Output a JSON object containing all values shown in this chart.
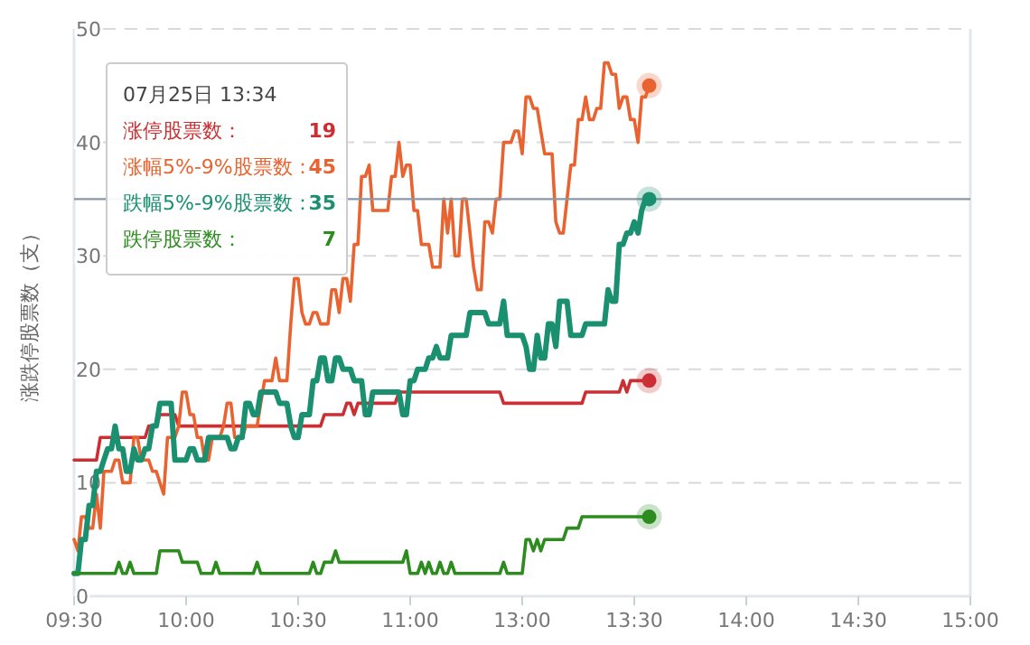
{
  "chart_data": {
    "type": "line",
    "ylabel": "涨跌停股票数（支）",
    "legend_title": "07月25日 13:34",
    "legend": "top left",
    "grid": "y",
    "marker": "none",
    "line_style": "solid",
    "categories": [
      "09:30",
      null,
      null,
      null,
      null,
      null,
      null,
      null,
      null,
      null,
      null,
      null,
      null,
      null,
      null,
      null,
      null,
      null,
      null,
      null,
      null,
      null,
      null,
      null,
      null,
      null,
      null,
      null,
      null,
      null,
      "10:00",
      null,
      null,
      null,
      null,
      null,
      null,
      null,
      null,
      null,
      null,
      null,
      null,
      null,
      null,
      null,
      null,
      null,
      null,
      null,
      null,
      null,
      null,
      null,
      null,
      null,
      null,
      null,
      null,
      null,
      "10:30",
      null,
      null,
      null,
      null,
      null,
      null,
      null,
      null,
      null,
      null,
      null,
      null,
      null,
      null,
      null,
      null,
      null,
      null,
      null,
      null,
      null,
      null,
      null,
      null,
      null,
      null,
      null,
      null,
      null,
      "11:00",
      null,
      null,
      null,
      null,
      null,
      null,
      null,
      null,
      null,
      null,
      null,
      null,
      null,
      null,
      null,
      null,
      null,
      null,
      null,
      null,
      null,
      null,
      null,
      null,
      null,
      null,
      null,
      null,
      null,
      "13:00",
      null,
      null,
      null,
      null,
      null,
      null,
      null,
      null,
      null,
      null,
      null,
      null,
      null,
      null,
      null,
      null,
      null,
      null,
      null,
      null,
      null,
      null,
      null,
      null,
      null,
      null,
      null,
      null,
      null,
      "13:30",
      null,
      null,
      null,
      null,
      null,
      null,
      null,
      null,
      null,
      null,
      null,
      null,
      null,
      null,
      null,
      null,
      null,
      null,
      null,
      null,
      null,
      null,
      null,
      null,
      null,
      null,
      null,
      null,
      null,
      "14:00",
      null,
      null,
      null,
      null,
      null,
      null,
      null,
      null,
      null,
      null,
      null,
      null,
      null,
      null,
      null,
      null,
      null,
      null,
      null,
      null,
      null,
      null,
      null,
      null,
      null,
      null,
      null,
      null,
      null,
      "14:30",
      null,
      null,
      null,
      null,
      null,
      null,
      null,
      null,
      null,
      null,
      null,
      null,
      null,
      null,
      null,
      null,
      null,
      null,
      null,
      null,
      null,
      null,
      null,
      null,
      null,
      null,
      null,
      null,
      null,
      "15:00"
    ],
    "ylim": [
      0,
      50
    ],
    "yticks": [
      0,
      10,
      20,
      30,
      40,
      50
    ],
    "ref_lines": [
      {
        "axis": "y",
        "value": 35,
        "color": "#8a97a8"
      }
    ],
    "annotations": [
      "19",
      "45",
      "35",
      "7"
    ],
    "series": [
      {
        "name": "涨停股票数：",
        "color": "#cc2f33",
        "values": [
          12,
          12,
          12,
          12,
          12,
          12,
          12,
          14,
          14,
          14,
          14,
          14,
          14,
          14,
          14,
          14,
          14,
          14,
          14,
          14,
          15,
          15,
          15,
          16,
          16,
          16,
          16,
          16,
          15,
          15,
          15,
          15,
          15,
          15,
          15,
          15,
          15,
          15,
          15,
          15,
          15,
          15,
          15,
          15,
          15,
          15,
          15,
          15,
          15,
          15,
          15,
          15,
          15,
          15,
          15,
          15,
          15,
          15,
          15,
          15,
          15,
          15,
          15,
          15,
          15,
          15,
          15,
          16,
          16,
          16,
          16,
          16,
          16,
          17,
          17,
          16,
          17,
          17,
          17,
          17,
          17,
          17,
          17,
          17,
          17,
          17,
          17,
          18,
          18,
          18,
          18,
          18,
          18,
          18,
          18,
          18,
          18,
          18,
          18,
          18,
          18,
          18,
          18,
          18,
          18,
          18,
          18,
          18,
          18,
          18,
          18,
          18,
          18,
          18,
          18,
          17,
          17,
          17,
          17,
          17,
          17,
          17,
          17,
          17,
          17,
          17,
          17,
          17,
          17,
          17,
          17,
          17,
          17,
          17,
          17,
          17,
          17,
          18,
          18,
          18,
          18,
          18,
          18,
          18,
          18,
          18,
          18,
          19,
          18,
          19,
          19,
          19,
          19,
          19,
          19,
          null,
          null,
          null,
          null,
          null,
          null,
          null,
          null,
          null,
          null,
          null,
          null,
          null,
          null,
          null,
          null,
          null,
          null,
          null,
          null,
          null,
          null,
          null,
          null,
          null,
          null,
          null,
          null,
          null,
          null,
          null,
          null,
          null,
          null,
          null,
          null,
          null,
          null,
          null,
          null,
          null,
          null,
          null,
          null,
          null,
          null,
          null,
          null,
          null,
          null,
          null,
          null,
          null,
          null,
          null,
          null,
          null,
          null,
          null,
          null,
          null,
          null,
          null,
          null,
          null,
          null,
          null,
          null,
          null,
          null,
          null,
          null,
          null,
          null,
          null,
          null,
          null,
          null,
          null,
          null,
          null,
          null,
          null,
          null,
          null,
          null
        ]
      },
      {
        "name": "涨幅5%-9%股票数：",
        "color": "#e8632f",
        "values": [
          5,
          4,
          7,
          7,
          6,
          6,
          9,
          6,
          11,
          11,
          11,
          12,
          12,
          10,
          10,
          10,
          14,
          14,
          12,
          12,
          12,
          11,
          11,
          10,
          9,
          14,
          14,
          14,
          15,
          18,
          18,
          16,
          16,
          14,
          14,
          12,
          12,
          14,
          14,
          14,
          15,
          17,
          17,
          14,
          14,
          14,
          15,
          15,
          15,
          15,
          17,
          19,
          19,
          19,
          21,
          19,
          19,
          19,
          24,
          28,
          28,
          25,
          24,
          24,
          25,
          25,
          24,
          24,
          24,
          27,
          27,
          25,
          28,
          28,
          26,
          31,
          31,
          37,
          37,
          38,
          34,
          34,
          34,
          34,
          34,
          37,
          37,
          40,
          37,
          38,
          38,
          34,
          34,
          31,
          31,
          31,
          29,
          29,
          29,
          35,
          32,
          35,
          30,
          30,
          35,
          35,
          32,
          29,
          27,
          27,
          33,
          33,
          32,
          35,
          35,
          40,
          40,
          40,
          41,
          41,
          39,
          44,
          44,
          43,
          43,
          41,
          39,
          39,
          39,
          33,
          32,
          32,
          35,
          38,
          38,
          42,
          42,
          44,
          42,
          42,
          43,
          43,
          47,
          47,
          46,
          46,
          43,
          44,
          44,
          42,
          42,
          40,
          44,
          44,
          45,
          null,
          null,
          null,
          null,
          null,
          null,
          null,
          null,
          null,
          null,
          null,
          null,
          null,
          null,
          null,
          null,
          null,
          null,
          null,
          null,
          null,
          null,
          null,
          null,
          null,
          null,
          null,
          null,
          null,
          null,
          null,
          null,
          null,
          null,
          null,
          null,
          null,
          null,
          null,
          null,
          null,
          null,
          null,
          null,
          null,
          null,
          null,
          null,
          null,
          null,
          null,
          null,
          null,
          null,
          null,
          null,
          null,
          null,
          null,
          null,
          null,
          null,
          null,
          null,
          null,
          null,
          null,
          null,
          null,
          null,
          null,
          null,
          null,
          null,
          null,
          null,
          null,
          null,
          null,
          null,
          null,
          null,
          null,
          null,
          null,
          null
        ]
      },
      {
        "name": "跌幅5%-9%股票数：",
        "color": "#1a9070",
        "values": [
          2,
          2,
          5,
          5,
          8,
          8,
          11,
          11,
          12,
          13,
          13,
          15,
          13,
          13,
          11,
          11,
          13,
          12,
          12,
          13,
          13,
          15,
          15,
          17,
          17,
          17,
          17,
          12,
          12,
          12,
          12,
          13,
          13,
          12,
          12,
          12,
          14,
          14,
          14,
          14,
          14,
          14,
          13,
          13,
          14,
          14,
          17,
          17,
          16,
          16,
          18,
          18,
          18,
          18,
          18,
          17,
          17,
          17,
          15,
          14,
          14,
          16,
          16,
          16,
          19,
          19,
          21,
          21,
          19,
          19,
          21,
          21,
          20,
          20,
          20,
          19,
          19,
          19,
          16,
          16,
          18,
          18,
          18,
          18,
          18,
          18,
          18,
          18,
          16,
          16,
          19,
          19,
          20,
          20,
          20,
          21,
          21,
          22,
          21,
          21,
          21,
          23,
          23,
          23,
          23,
          23,
          25,
          25,
          25,
          25,
          25,
          24,
          24,
          24,
          24,
          26,
          23,
          23,
          23,
          23,
          23,
          22,
          20,
          20,
          23,
          21,
          21,
          24,
          24,
          22,
          26,
          26,
          26,
          23,
          23,
          23,
          23,
          24,
          24,
          24,
          24,
          24,
          24,
          27,
          26,
          26,
          31,
          31,
          32,
          32,
          33,
          32,
          34,
          35,
          35,
          null,
          null,
          null,
          null,
          null,
          null,
          null,
          null,
          null,
          null,
          null,
          null,
          null,
          null,
          null,
          null,
          null,
          null,
          null,
          null,
          null,
          null,
          null,
          null,
          null,
          null,
          null,
          null,
          null,
          null,
          null,
          null,
          null,
          null,
          null,
          null,
          null,
          null,
          null,
          null,
          null,
          null,
          null,
          null,
          null,
          null,
          null,
          null,
          null,
          null,
          null,
          null,
          null,
          null,
          null,
          null,
          null,
          null,
          null,
          null,
          null,
          null,
          null,
          null,
          null,
          null,
          null,
          null,
          null,
          null,
          null,
          null,
          null,
          null,
          null,
          null,
          null,
          null,
          null,
          null,
          null,
          null,
          null,
          null,
          null,
          null
        ]
      },
      {
        "name": "跌停股票数：",
        "color": "#2c8c1e",
        "values": [
          2,
          2,
          2,
          2,
          2,
          2,
          2,
          2,
          2,
          2,
          2,
          2,
          3,
          2,
          2,
          3,
          2,
          2,
          2,
          2,
          2,
          2,
          2,
          4,
          4,
          4,
          4,
          4,
          4,
          3,
          3,
          3,
          3,
          3,
          2,
          2,
          2,
          2,
          3,
          2,
          2,
          2,
          2,
          2,
          2,
          2,
          2,
          2,
          2,
          3,
          2,
          2,
          2,
          2,
          2,
          2,
          2,
          2,
          2,
          2,
          2,
          2,
          2,
          2,
          3,
          2,
          2,
          3,
          3,
          3,
          4,
          3,
          3,
          3,
          3,
          3,
          3,
          3,
          3,
          3,
          3,
          3,
          3,
          3,
          3,
          3,
          3,
          3,
          3,
          4,
          2,
          2,
          2,
          3,
          2,
          3,
          2,
          2,
          3,
          2,
          2,
          3,
          2,
          2,
          2,
          2,
          2,
          2,
          2,
          2,
          2,
          2,
          2,
          2,
          2,
          3,
          2,
          2,
          2,
          2,
          2,
          5,
          5,
          4,
          5,
          4,
          5,
          5,
          5,
          5,
          5,
          5,
          6,
          6,
          6,
          6,
          7,
          7,
          7,
          7,
          7,
          7,
          7,
          7,
          7,
          7,
          7,
          7,
          7,
          7,
          7,
          7,
          7,
          7,
          7,
          null,
          null,
          null,
          null,
          null,
          null,
          null,
          null,
          null,
          null,
          null,
          null,
          null,
          null,
          null,
          null,
          null,
          null,
          null,
          null,
          null,
          null,
          null,
          null,
          null,
          null,
          null,
          null,
          null,
          null,
          null,
          null,
          null,
          null,
          null,
          null,
          null,
          null,
          null,
          null,
          null,
          null,
          null,
          null,
          null,
          null,
          null,
          null,
          null,
          null,
          null,
          null,
          null,
          null,
          null,
          null,
          null,
          null,
          null,
          null,
          null,
          null,
          null,
          null,
          null,
          null,
          null,
          null,
          null,
          null,
          null,
          null,
          null,
          null,
          null,
          null,
          null,
          null,
          null,
          null,
          null,
          null,
          null,
          null,
          null,
          null
        ]
      }
    ]
  }
}
